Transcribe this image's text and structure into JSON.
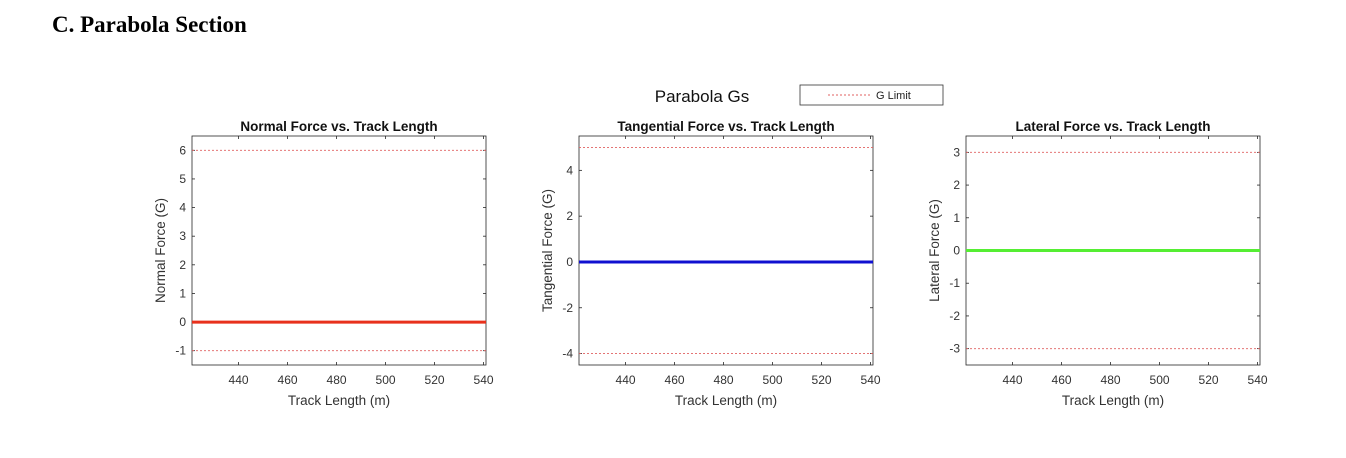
{
  "section_heading": "C.  Parabola Section",
  "figure": {
    "suptitle": "Parabola Gs",
    "legend": {
      "label": "G Limit",
      "line_color": "#e06060",
      "line_style": "dashed"
    }
  },
  "chart_data": [
    {
      "type": "line",
      "title": "Normal Force vs. Track Length",
      "xlabel": "Track Length (m)",
      "ylabel": "Normal Force (G)",
      "xlim": [
        421,
        541
      ],
      "ylim": [
        -1.5,
        6.5
      ],
      "xticks": [
        440,
        460,
        480,
        500,
        520,
        540
      ],
      "yticks": [
        -1,
        0,
        1,
        2,
        3,
        4,
        5,
        6
      ],
      "series": [
        {
          "x": [
            421,
            541
          ],
          "y": [
            0,
            0
          ],
          "color": "#e8311c",
          "width": 3
        }
      ],
      "limits": [
        6,
        -1
      ],
      "grid": false
    },
    {
      "type": "line",
      "title": "Tangential Force vs. Track Length",
      "xlabel": "Track Length (m)",
      "ylabel": "Tangential Force (G)",
      "xlim": [
        421,
        541
      ],
      "ylim": [
        -4.5,
        5.5
      ],
      "xticks": [
        440,
        460,
        480,
        500,
        520,
        540
      ],
      "yticks": [
        -4,
        -2,
        0,
        2,
        4
      ],
      "series": [
        {
          "x": [
            421,
            541
          ],
          "y": [
            0,
            0
          ],
          "color": "#1010d0",
          "width": 3
        }
      ],
      "limits": [
        5,
        -4
      ],
      "grid": false
    },
    {
      "type": "line",
      "title": "Lateral Force vs. Track Length",
      "xlabel": "Track Length (m)",
      "ylabel": "Lateral Force (G)",
      "xlim": [
        421,
        541
      ],
      "ylim": [
        -3.5,
        3.5
      ],
      "xticks": [
        440,
        460,
        480,
        500,
        520,
        540
      ],
      "yticks": [
        -3,
        -2,
        -1,
        0,
        1,
        2,
        3
      ],
      "series": [
        {
          "x": [
            421,
            541
          ],
          "y": [
            0,
            0
          ],
          "color": "#55ee33",
          "width": 3
        }
      ],
      "limits": [
        3,
        -3
      ],
      "grid": false
    }
  ]
}
